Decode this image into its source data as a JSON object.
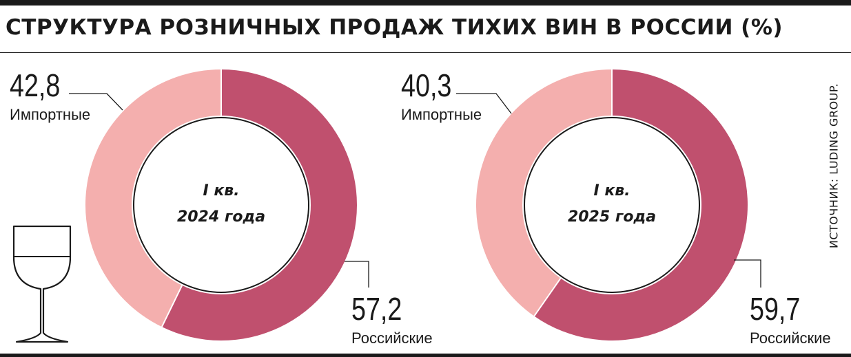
{
  "title": "СТРУКТУРА РОЗНИЧНЫХ ПРОДАЖ ТИХИХ ВИН В РОССИИ (%)",
  "source": "ИСТОЧНИК: LUDING GROUP.",
  "colors": {
    "imported": "#f4afae",
    "domestic": "#c0506e",
    "ink": "#1a1a1a"
  },
  "icon": "wine-glass-icon",
  "chart_data": [
    {
      "type": "pie",
      "center_label": [
        "I кв.",
        "2024 года"
      ],
      "slices": [
        {
          "label": "Российские",
          "value": 57.2,
          "value_label": "57,2"
        },
        {
          "label": "Импортные",
          "value": 42.8,
          "value_label": "42,8"
        }
      ]
    },
    {
      "type": "pie",
      "center_label": [
        "I кв.",
        "2025 года"
      ],
      "slices": [
        {
          "label": "Российские",
          "value": 59.7,
          "value_label": "59,7"
        },
        {
          "label": "Импортные",
          "value": 40.3,
          "value_label": "40,3"
        }
      ]
    }
  ]
}
